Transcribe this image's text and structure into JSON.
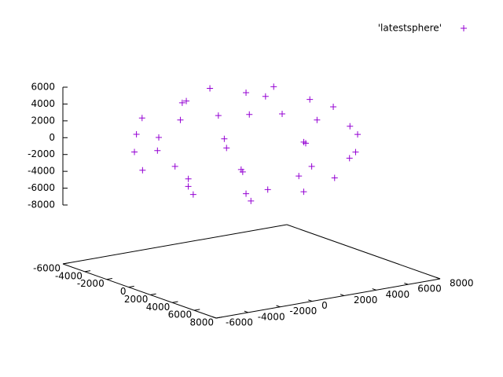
{
  "chart_data": {
    "type": "scatter3d",
    "series": [
      {
        "name": "'latestsphere'",
        "color": "#9400d3",
        "x": [
          3800,
          2150,
          -1150,
          -2800,
          -1150,
          2150,
          5954,
          4357,
          500,
          -3357,
          -4954,
          -3357,
          500,
          4357,
          6500,
          5354,
          2354,
          -1354,
          -4354,
          -5500,
          -4354,
          -1354,
          2354,
          5354,
          5539,
          2589,
          -1589,
          -4539,
          -4539,
          -1589,
          2589,
          5539,
          3358,
          500,
          -2358,
          -2358,
          500,
          3358,
          500,
          500
        ],
        "y": [
          1000,
          3858,
          3858,
          1000,
          -1858,
          -1858,
          1000,
          4857,
          6454,
          4857,
          1000,
          -2857,
          -4454,
          -2857,
          1000,
          4528,
          6706,
          6706,
          4528,
          1000,
          -2528,
          -4706,
          -4706,
          -2528,
          3089,
          6039,
          6039,
          3089,
          -1089,
          -4039,
          -4039,
          -1089,
          2650,
          4300,
          2650,
          -650,
          -2300,
          -650,
          1000,
          1000
        ],
        "z": [
          5000,
          5000,
          5000,
          5000,
          5000,
          5000,
          2500,
          2500,
          2500,
          2500,
          2500,
          2500,
          2500,
          2500,
          0,
          0,
          0,
          0,
          0,
          0,
          0,
          0,
          0,
          0,
          -2500,
          -2500,
          -2500,
          -2500,
          -2500,
          -2500,
          -2500,
          -2500,
          -5000,
          -5000,
          -5000,
          -5000,
          -5000,
          -5000,
          6000,
          -6000
        ]
      }
    ],
    "xlim": [
      -6000,
      8000
    ],
    "xticks": [
      -6000,
      -4000,
      -2000,
      0,
      2000,
      4000,
      6000,
      8000
    ],
    "ylim": [
      -6000,
      8000
    ],
    "yticks": [
      -6000,
      -4000,
      -2000,
      0,
      2000,
      4000,
      6000,
      8000
    ],
    "zlim": [
      -8000,
      6000
    ],
    "zticks": [
      -8000,
      -6000,
      -4000,
      -2000,
      0,
      2000,
      4000,
      6000
    ],
    "legend": "top-right"
  }
}
